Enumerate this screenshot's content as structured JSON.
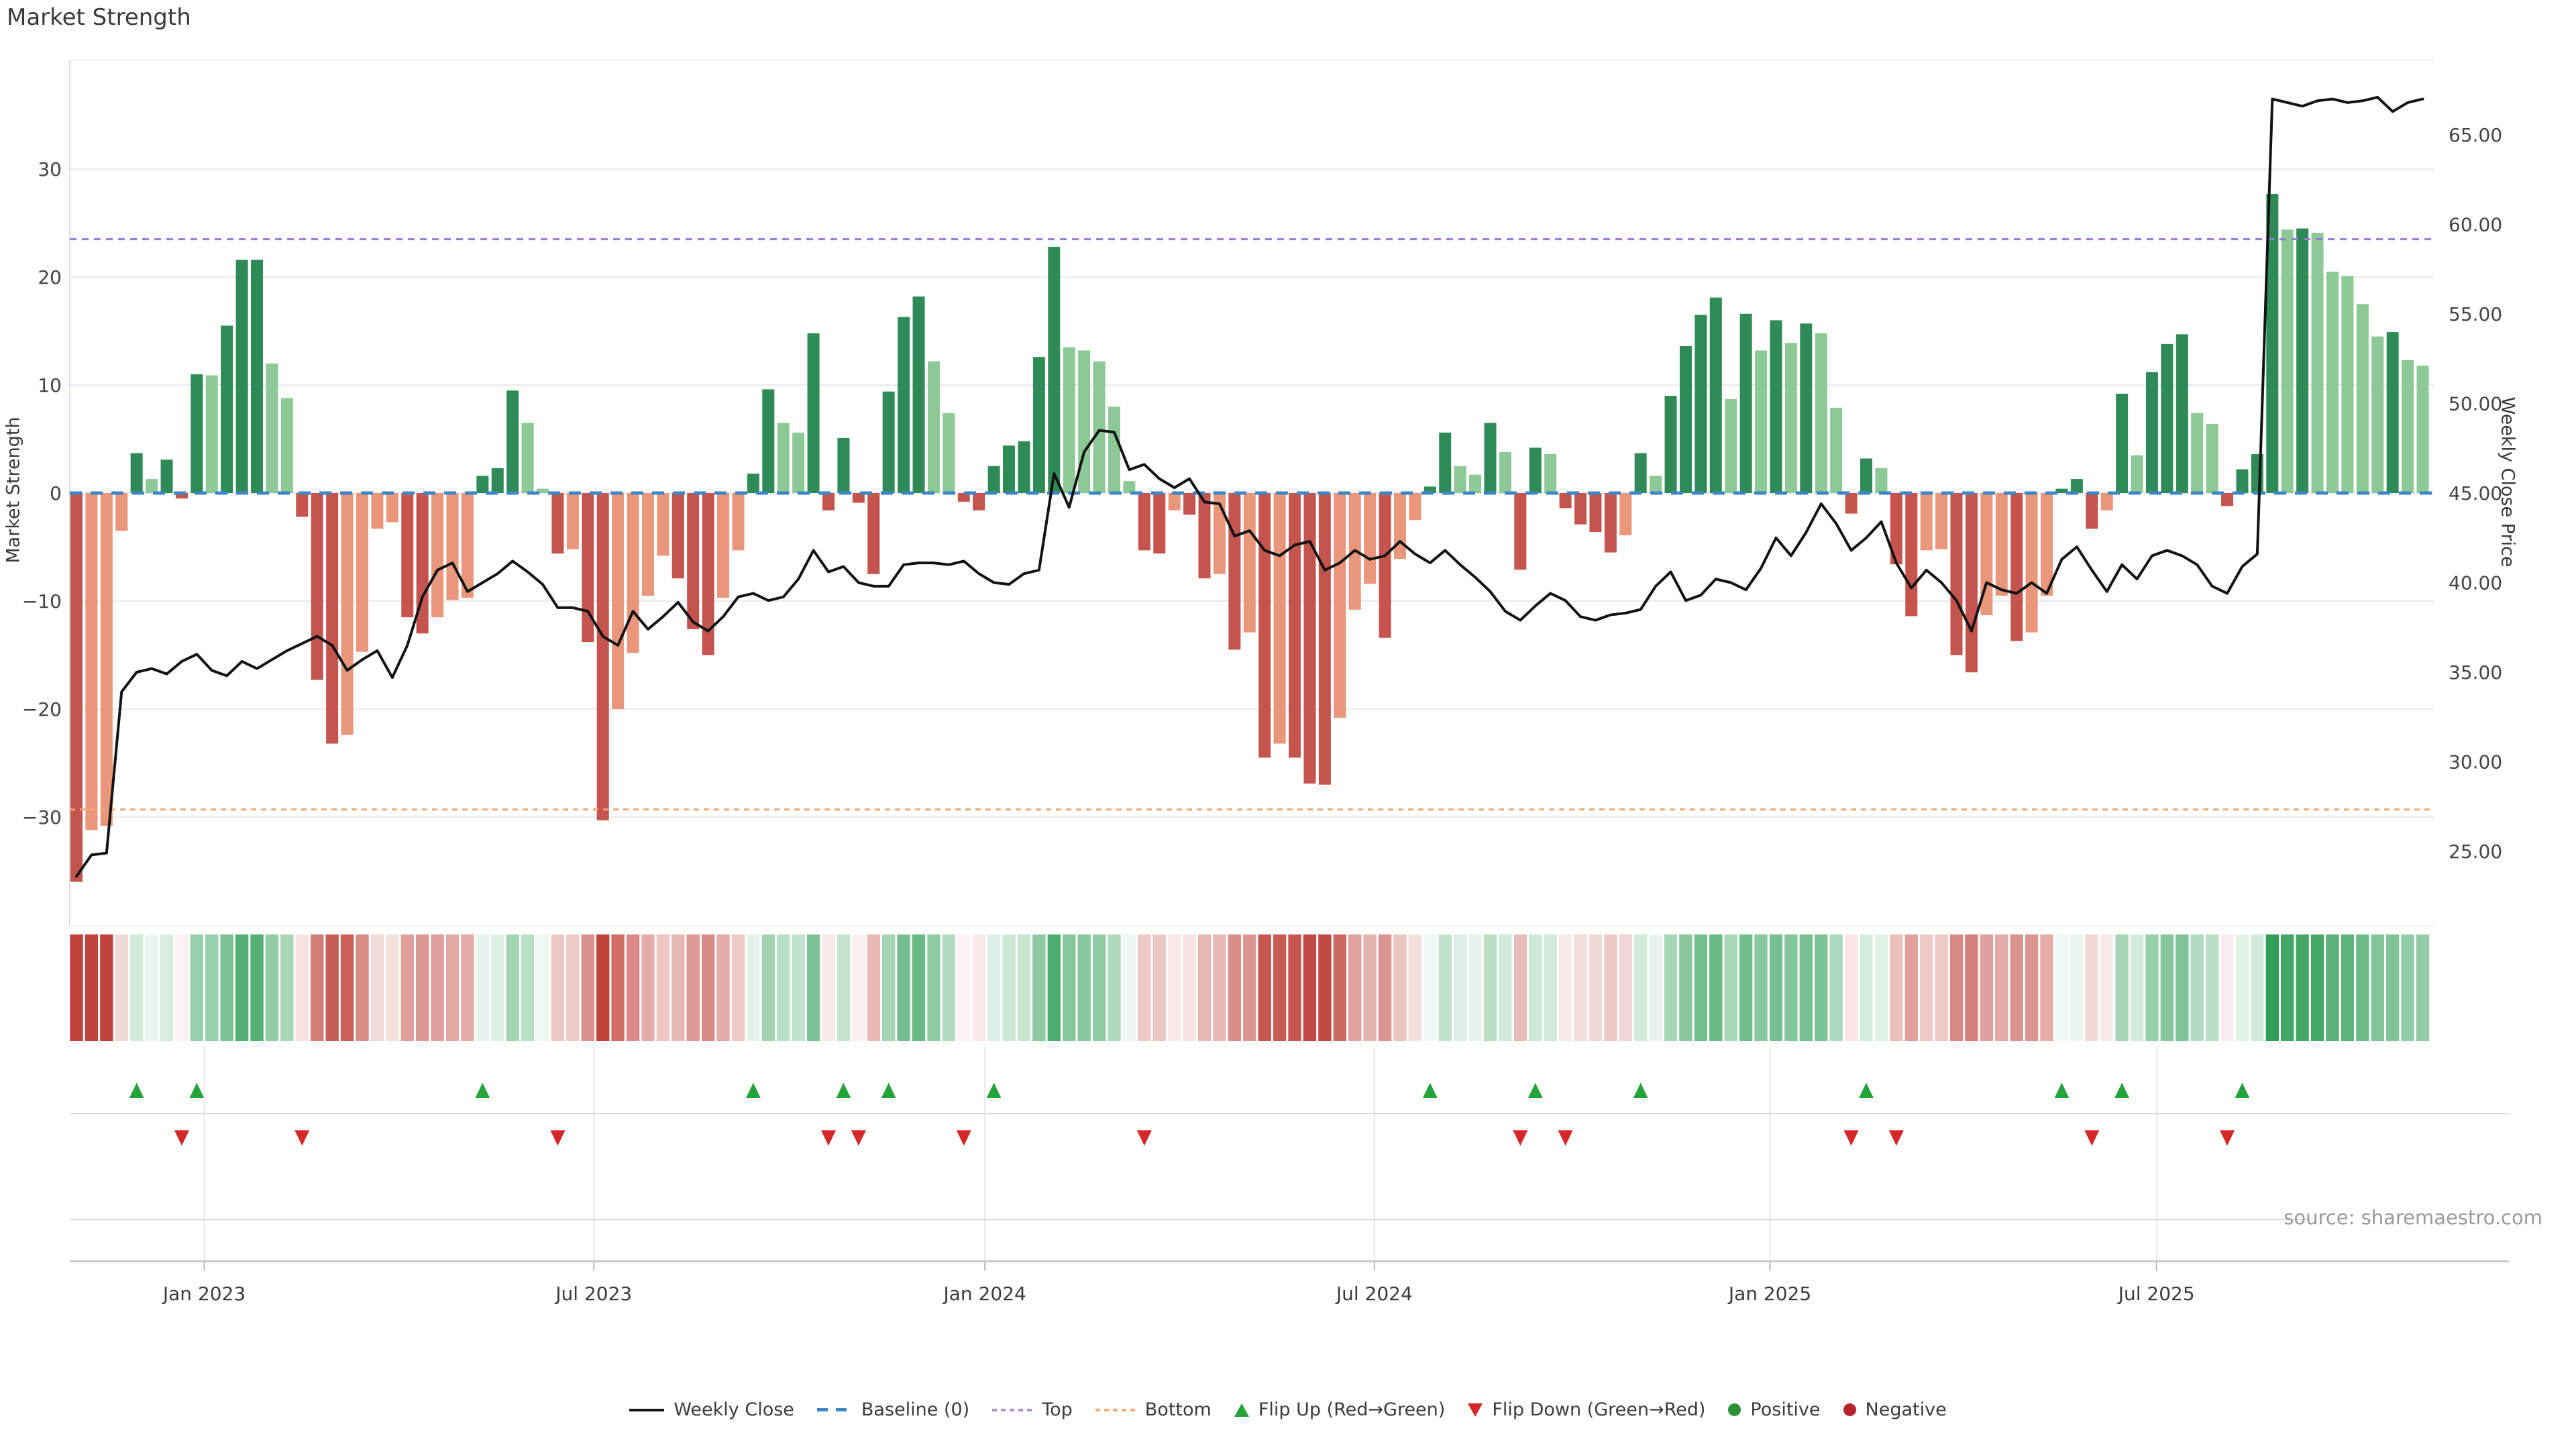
{
  "title": "Market Strength",
  "source": "source: sharemaestro.com",
  "axes": {
    "left": {
      "label": "Market Strength",
      "ticks": [
        {
          "v": 30,
          "label": "30"
        },
        {
          "v": 20,
          "label": "20"
        },
        {
          "v": 10,
          "label": "10"
        },
        {
          "v": 0,
          "label": "0"
        },
        {
          "v": -10,
          "label": "−10"
        },
        {
          "v": -20,
          "label": "−20"
        },
        {
          "v": -30,
          "label": "−30"
        }
      ]
    },
    "right": {
      "label": "Weekly Close Price",
      "ticks": [
        {
          "v": 65,
          "label": "65.00"
        },
        {
          "v": 60,
          "label": "60.00"
        },
        {
          "v": 55,
          "label": "55.00"
        },
        {
          "v": 50,
          "label": "50.00"
        },
        {
          "v": 45,
          "label": "45.00"
        },
        {
          "v": 40,
          "label": "40.00"
        },
        {
          "v": 35,
          "label": "35.00"
        },
        {
          "v": 30,
          "label": "30.00"
        },
        {
          "v": 25,
          "label": "25.00"
        }
      ]
    },
    "x": {
      "labels": [
        {
          "label": "Jan 2023",
          "week": 8.5
        },
        {
          "label": "Jul 2023",
          "week": 34.4
        },
        {
          "label": "Jan 2024",
          "week": 60.4
        },
        {
          "label": "Jul 2024",
          "week": 86.3
        },
        {
          "label": "Jan 2025",
          "week": 112.6
        },
        {
          "label": "Jul 2025",
          "week": 138.3
        }
      ]
    }
  },
  "legend": {
    "items": [
      {
        "label": "Weekly Close",
        "swatch": "line"
      },
      {
        "label": "Baseline (0)",
        "swatch": "dash-blue"
      },
      {
        "label": "Top",
        "swatch": "dot-purple"
      },
      {
        "label": "Bottom",
        "swatch": "dot-orange"
      },
      {
        "label": "Flip Up (Red→Green)",
        "swatch": "tri-up"
      },
      {
        "label": "Flip Down (Green→Red)",
        "swatch": "tri-down"
      },
      {
        "label": "Positive",
        "swatch": "dot-pos"
      },
      {
        "label": "Negative",
        "swatch": "dot-neg"
      }
    ]
  },
  "palette": {
    "bar_pos_strong": "#2e8b57",
    "bar_pos_weak": "#8cc996",
    "bar_neg_strong": "#c5544e",
    "bar_neg_weak": "#e9967a",
    "price_line": "#131313",
    "baseline": "#3d87c5",
    "top_line": "#9a7bd4",
    "bottom_line": "#f2a86c",
    "flip_up": "#23a338",
    "flip_down": "#d62728",
    "heat_pos_end": "#2f9e57",
    "heat_neg_end": "#c0443c",
    "grid": "#e9e9ef",
    "spine": "#dcdce2",
    "separator": "#d6d6dc",
    "axis_line": "#c9c9d0",
    "tick_text": "#444444",
    "label_text": "#3c3c3c"
  },
  "chart_data": {
    "type": "combo",
    "title": "Market Strength",
    "xlabel": "",
    "ylabel_left": "Market Strength",
    "ylabel_right": "Weekly Close Price",
    "left_ylim": [
      -40,
      40
    ],
    "right_ylim": [
      20.9,
      69.1
    ],
    "grid": true,
    "legend_position": "bottom",
    "reference_lines": {
      "baseline": 0,
      "top": 23.5,
      "bottom": -29.3
    },
    "series": [
      {
        "name": "Market Strength",
        "type": "bar",
        "values": [
          -36,
          -31.2,
          -30.8,
          -3.5,
          3.7,
          1.3,
          3.1,
          -0.5,
          11,
          10.9,
          15.5,
          21.6,
          21.6,
          12,
          8.8,
          -2.2,
          -17.3,
          -23.2,
          -22.4,
          -14.7,
          -3.3,
          -2.7,
          -11.5,
          -13,
          -11.5,
          -9.9,
          -9.7,
          1.6,
          2.3,
          9.5,
          6.5,
          0.4,
          -5.6,
          -5.2,
          -13.8,
          -30.3,
          -20,
          -14.8,
          -9.5,
          -5.8,
          -7.9,
          -12.6,
          -15,
          -9.7,
          -5.3,
          1.8,
          9.6,
          6.5,
          5.6,
          14.8,
          -1.6,
          5.1,
          -0.9,
          -7.5,
          9.4,
          16.3,
          18.2,
          12.2,
          7.4,
          -0.8,
          -1.6,
          2.5,
          4.4,
          4.8,
          12.6,
          22.8,
          13.5,
          13.2,
          12.2,
          8,
          1.1,
          -5.3,
          -5.6,
          -1.6,
          -2,
          -7.9,
          -7.5,
          -14.5,
          -12.9,
          -24.5,
          -23.2,
          -24.5,
          -26.9,
          -27,
          -20.8,
          -10.8,
          -8.4,
          -13.4,
          -6.1,
          -2.5,
          0.6,
          5.6,
          2.5,
          1.7,
          6.5,
          3.8,
          -7.1,
          4.2,
          3.6,
          -1.4,
          -2.9,
          -3.6,
          -5.5,
          -3.9,
          3.7,
          1.6,
          9,
          13.6,
          16.5,
          18.1,
          8.7,
          16.6,
          13.2,
          16,
          13.9,
          15.7,
          14.8,
          7.9,
          -1.9,
          3.2,
          2.3,
          -6.6,
          -11.4,
          -5.3,
          -5.2,
          -15,
          -16.6,
          -11.3,
          -9.5,
          -13.7,
          -12.9,
          -9.5,
          0.4,
          1.3,
          -3.3,
          -1.6,
          9.2,
          3.5,
          11.2,
          13.8,
          14.7,
          7.4,
          6.4,
          -1.2,
          2.2,
          3.6,
          27.7,
          24.4,
          24.5,
          24.1,
          20.5,
          20.1,
          17.5,
          14.5,
          14.9,
          12.3,
          11.8
        ]
      },
      {
        "name": "Weekly Close",
        "type": "line",
        "axis": "right",
        "values": [
          23.6,
          24.8,
          24.9,
          33.9,
          35,
          35.2,
          34.9,
          35.6,
          36,
          35.1,
          34.8,
          35.6,
          35.2,
          35.7,
          36.2,
          36.6,
          37,
          36.5,
          35.1,
          35.7,
          36.2,
          34.7,
          36.5,
          39.2,
          40.7,
          41.1,
          39.5,
          40,
          40.5,
          41.2,
          40.6,
          39.9,
          38.6,
          38.6,
          38.4,
          37,
          36.5,
          38.4,
          37.4,
          38.1,
          38.9,
          37.8,
          37.3,
          38.1,
          39.2,
          39.4,
          39,
          39.2,
          40.2,
          41.8,
          40.6,
          40.9,
          40,
          39.8,
          39.8,
          41,
          41.1,
          41.1,
          41,
          41.2,
          40.5,
          40,
          39.9,
          40.5,
          40.7,
          46.1,
          44.2,
          47.3,
          48.5,
          48.4,
          46.3,
          46.6,
          45.8,
          45.3,
          45.8,
          44.5,
          44.4,
          42.6,
          42.9,
          41.8,
          41.5,
          42.1,
          42.3,
          40.7,
          41.1,
          41.8,
          41.3,
          41.5,
          42.3,
          41.6,
          41.1,
          41.8,
          41,
          40.3,
          39.5,
          38.4,
          37.9,
          38.7,
          39.4,
          39,
          38.1,
          37.9,
          38.2,
          38.3,
          38.5,
          39.8,
          40.6,
          39,
          39.3,
          40.2,
          40,
          39.6,
          40.8,
          42.5,
          41.5,
          42.8,
          44.4,
          43.3,
          41.8,
          42.5,
          43.4,
          41.1,
          39.7,
          40.7,
          40,
          39,
          37.3,
          40,
          39.6,
          39.4,
          40,
          39.4,
          41.3,
          42,
          40.7,
          39.5,
          41,
          40.2,
          41.5,
          41.8,
          41.5,
          41,
          39.8,
          39.4,
          40.9,
          41.6,
          67,
          66.8,
          66.6,
          66.9,
          67,
          66.8,
          66.9,
          67.1,
          66.3,
          66.8,
          67
        ]
      }
    ],
    "flip_up_weeks": [
      4,
      8,
      27,
      45,
      51,
      54,
      61,
      90,
      97,
      104,
      119,
      132,
      136,
      144
    ],
    "flip_down_weeks": [
      7,
      15,
      32,
      50,
      52,
      59,
      71,
      96,
      99,
      118,
      121,
      134,
      143
    ],
    "heatmap": {
      "note": "strip below chart shades each week by Market Strength value",
      "scale_limit": 28
    }
  }
}
